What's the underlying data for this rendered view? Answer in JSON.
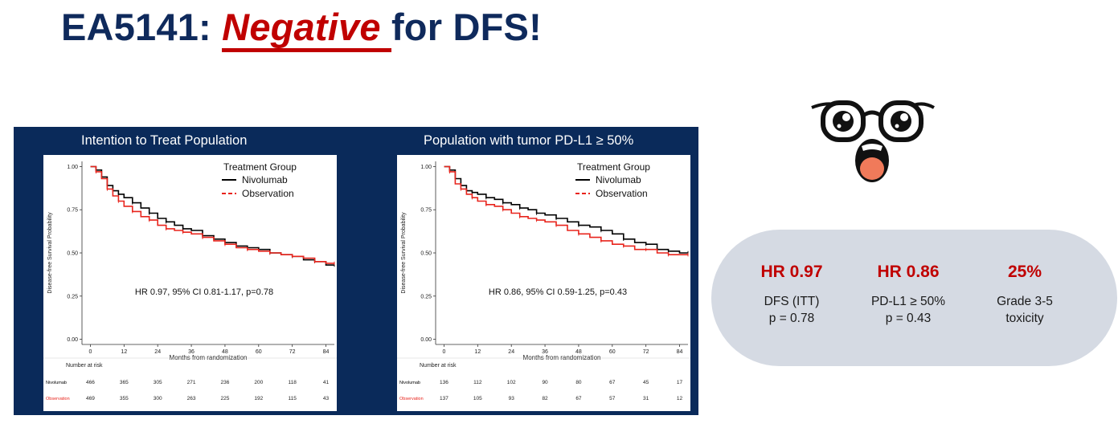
{
  "title": {
    "prefix": "EA5141: ",
    "emphasis": "Negative ",
    "suffix": "for DFS!"
  },
  "colors": {
    "navy": "#0f2a5c",
    "red": "#c00000",
    "panel": "#0a2a5a",
    "bubble": "#d5dae3"
  },
  "emoji_icon": "shocked-face-with-glasses-icon",
  "chart_data": [
    {
      "type": "line",
      "panel_title": "Intention to Treat Population",
      "xlabel": "Months from randomization",
      "ylabel": "Disease-free Survival Probability",
      "xticks": [
        0,
        12,
        24,
        36,
        48,
        60,
        72,
        84
      ],
      "yticks": [
        "0.00",
        "0.25",
        "0.50",
        "0.75",
        "1.00"
      ],
      "xlim": [
        -3,
        87
      ],
      "ylim": [
        -0.03,
        1.03
      ],
      "legend_title": "Treatment Group",
      "annotation": "HR 0.97, 95% CI 0.81-1.17, p=0.78",
      "series": [
        {
          "name": "Nivolumab",
          "color": "#000000",
          "x": [
            0,
            2,
            4,
            6,
            8,
            10,
            12,
            15,
            18,
            21,
            24,
            27,
            30,
            33,
            36,
            40,
            44,
            48,
            52,
            56,
            60,
            64,
            68,
            72,
            76,
            80,
            84,
            87
          ],
          "y": [
            1.0,
            0.98,
            0.94,
            0.89,
            0.86,
            0.84,
            0.82,
            0.79,
            0.76,
            0.73,
            0.7,
            0.68,
            0.66,
            0.64,
            0.63,
            0.6,
            0.58,
            0.56,
            0.54,
            0.53,
            0.52,
            0.5,
            0.49,
            0.48,
            0.46,
            0.45,
            0.43,
            0.43
          ]
        },
        {
          "name": "Observation",
          "color": "#e8241c",
          "x": [
            0,
            2,
            4,
            6,
            8,
            10,
            12,
            15,
            18,
            21,
            24,
            27,
            30,
            33,
            36,
            40,
            44,
            48,
            52,
            56,
            60,
            64,
            68,
            72,
            76,
            80,
            84,
            87
          ],
          "y": [
            1.0,
            0.97,
            0.93,
            0.87,
            0.83,
            0.8,
            0.77,
            0.74,
            0.71,
            0.69,
            0.66,
            0.64,
            0.63,
            0.62,
            0.61,
            0.59,
            0.57,
            0.55,
            0.53,
            0.52,
            0.51,
            0.5,
            0.49,
            0.48,
            0.47,
            0.45,
            0.44,
            0.44
          ]
        }
      ],
      "risk_table": {
        "label": "Number at risk",
        "rows": [
          {
            "name": "Nivolumab",
            "color": "#000000",
            "values": [
              "466",
              "365",
              "305",
              "271",
              "236",
              "200",
              "118",
              "41"
            ]
          },
          {
            "name": "Observation",
            "color": "#e8241c",
            "values": [
              "469",
              "355",
              "300",
              "263",
              "225",
              "192",
              "115",
              "43"
            ]
          }
        ]
      }
    },
    {
      "type": "line",
      "panel_title": "Population with tumor PD-L1 ≥ 50%",
      "xlabel": "Months from randomization",
      "ylabel": "Disease-free Survival Probability",
      "xticks": [
        0,
        12,
        24,
        36,
        48,
        60,
        72,
        84
      ],
      "yticks": [
        "0.00",
        "0.25",
        "0.50",
        "0.75",
        "1.00"
      ],
      "xlim": [
        -3,
        87
      ],
      "ylim": [
        -0.03,
        1.03
      ],
      "legend_title": "Treatment Group",
      "annotation": "HR 0.86, 95% CI 0.59-1.25, p=0.43",
      "series": [
        {
          "name": "Nivolumab",
          "color": "#000000",
          "x": [
            0,
            2,
            4,
            6,
            8,
            10,
            12,
            15,
            18,
            21,
            24,
            27,
            30,
            33,
            36,
            40,
            44,
            48,
            52,
            56,
            60,
            64,
            68,
            72,
            76,
            80,
            84,
            87
          ],
          "y": [
            1.0,
            0.98,
            0.93,
            0.89,
            0.86,
            0.85,
            0.84,
            0.82,
            0.81,
            0.79,
            0.78,
            0.76,
            0.75,
            0.73,
            0.72,
            0.7,
            0.68,
            0.66,
            0.65,
            0.63,
            0.61,
            0.58,
            0.56,
            0.55,
            0.52,
            0.51,
            0.5,
            0.5
          ]
        },
        {
          "name": "Observation",
          "color": "#e8241c",
          "x": [
            0,
            2,
            4,
            6,
            8,
            10,
            12,
            15,
            18,
            21,
            24,
            27,
            30,
            33,
            36,
            40,
            44,
            48,
            52,
            56,
            60,
            64,
            68,
            72,
            76,
            80,
            84,
            87
          ],
          "y": [
            1.0,
            0.97,
            0.9,
            0.87,
            0.84,
            0.82,
            0.8,
            0.78,
            0.77,
            0.75,
            0.73,
            0.71,
            0.7,
            0.69,
            0.68,
            0.66,
            0.63,
            0.61,
            0.59,
            0.57,
            0.55,
            0.54,
            0.52,
            0.52,
            0.5,
            0.49,
            0.49,
            0.49
          ]
        }
      ],
      "risk_table": {
        "label": "Number at risk",
        "rows": [
          {
            "name": "Nivolumab",
            "color": "#000000",
            "values": [
              "136",
              "112",
              "102",
              "90",
              "80",
              "67",
              "45",
              "17"
            ]
          },
          {
            "name": "Observation",
            "color": "#e8241c",
            "values": [
              "137",
              "105",
              "93",
              "82",
              "67",
              "57",
              "31",
              "12"
            ]
          }
        ]
      }
    }
  ],
  "summary": [
    {
      "value": "HR 0.97",
      "line1": "DFS (ITT)",
      "line2": "p = 0.78"
    },
    {
      "value": "HR 0.86",
      "line1": "PD-L1 ≥ 50%",
      "line2": "p = 0.43"
    },
    {
      "value": "25%",
      "line1": "Grade 3-5",
      "line2": "toxicity"
    }
  ]
}
